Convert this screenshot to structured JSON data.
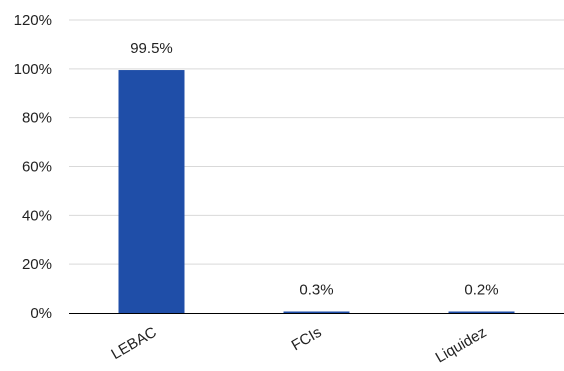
{
  "chart_data": {
    "type": "bar",
    "categories": [
      "LEBAC",
      "FCIs",
      "Liquidez"
    ],
    "values": [
      99.5,
      0.3,
      0.2
    ],
    "data_labels": [
      "99.5%",
      "0.3%",
      "0.2%"
    ],
    "title": "",
    "xlabel": "",
    "ylabel": "",
    "ylim": [
      0,
      120
    ],
    "y_ticks": [
      0,
      20,
      40,
      60,
      80,
      100,
      120
    ],
    "y_tick_labels": [
      "0%",
      "20%",
      "40%",
      "60%",
      "80%",
      "100%",
      "120%"
    ],
    "grid": true,
    "legend": "none",
    "colors": {
      "bar": "#1f4ea8",
      "grid": "#d9d9d9",
      "axis": "#000000",
      "text": "#222222"
    }
  }
}
